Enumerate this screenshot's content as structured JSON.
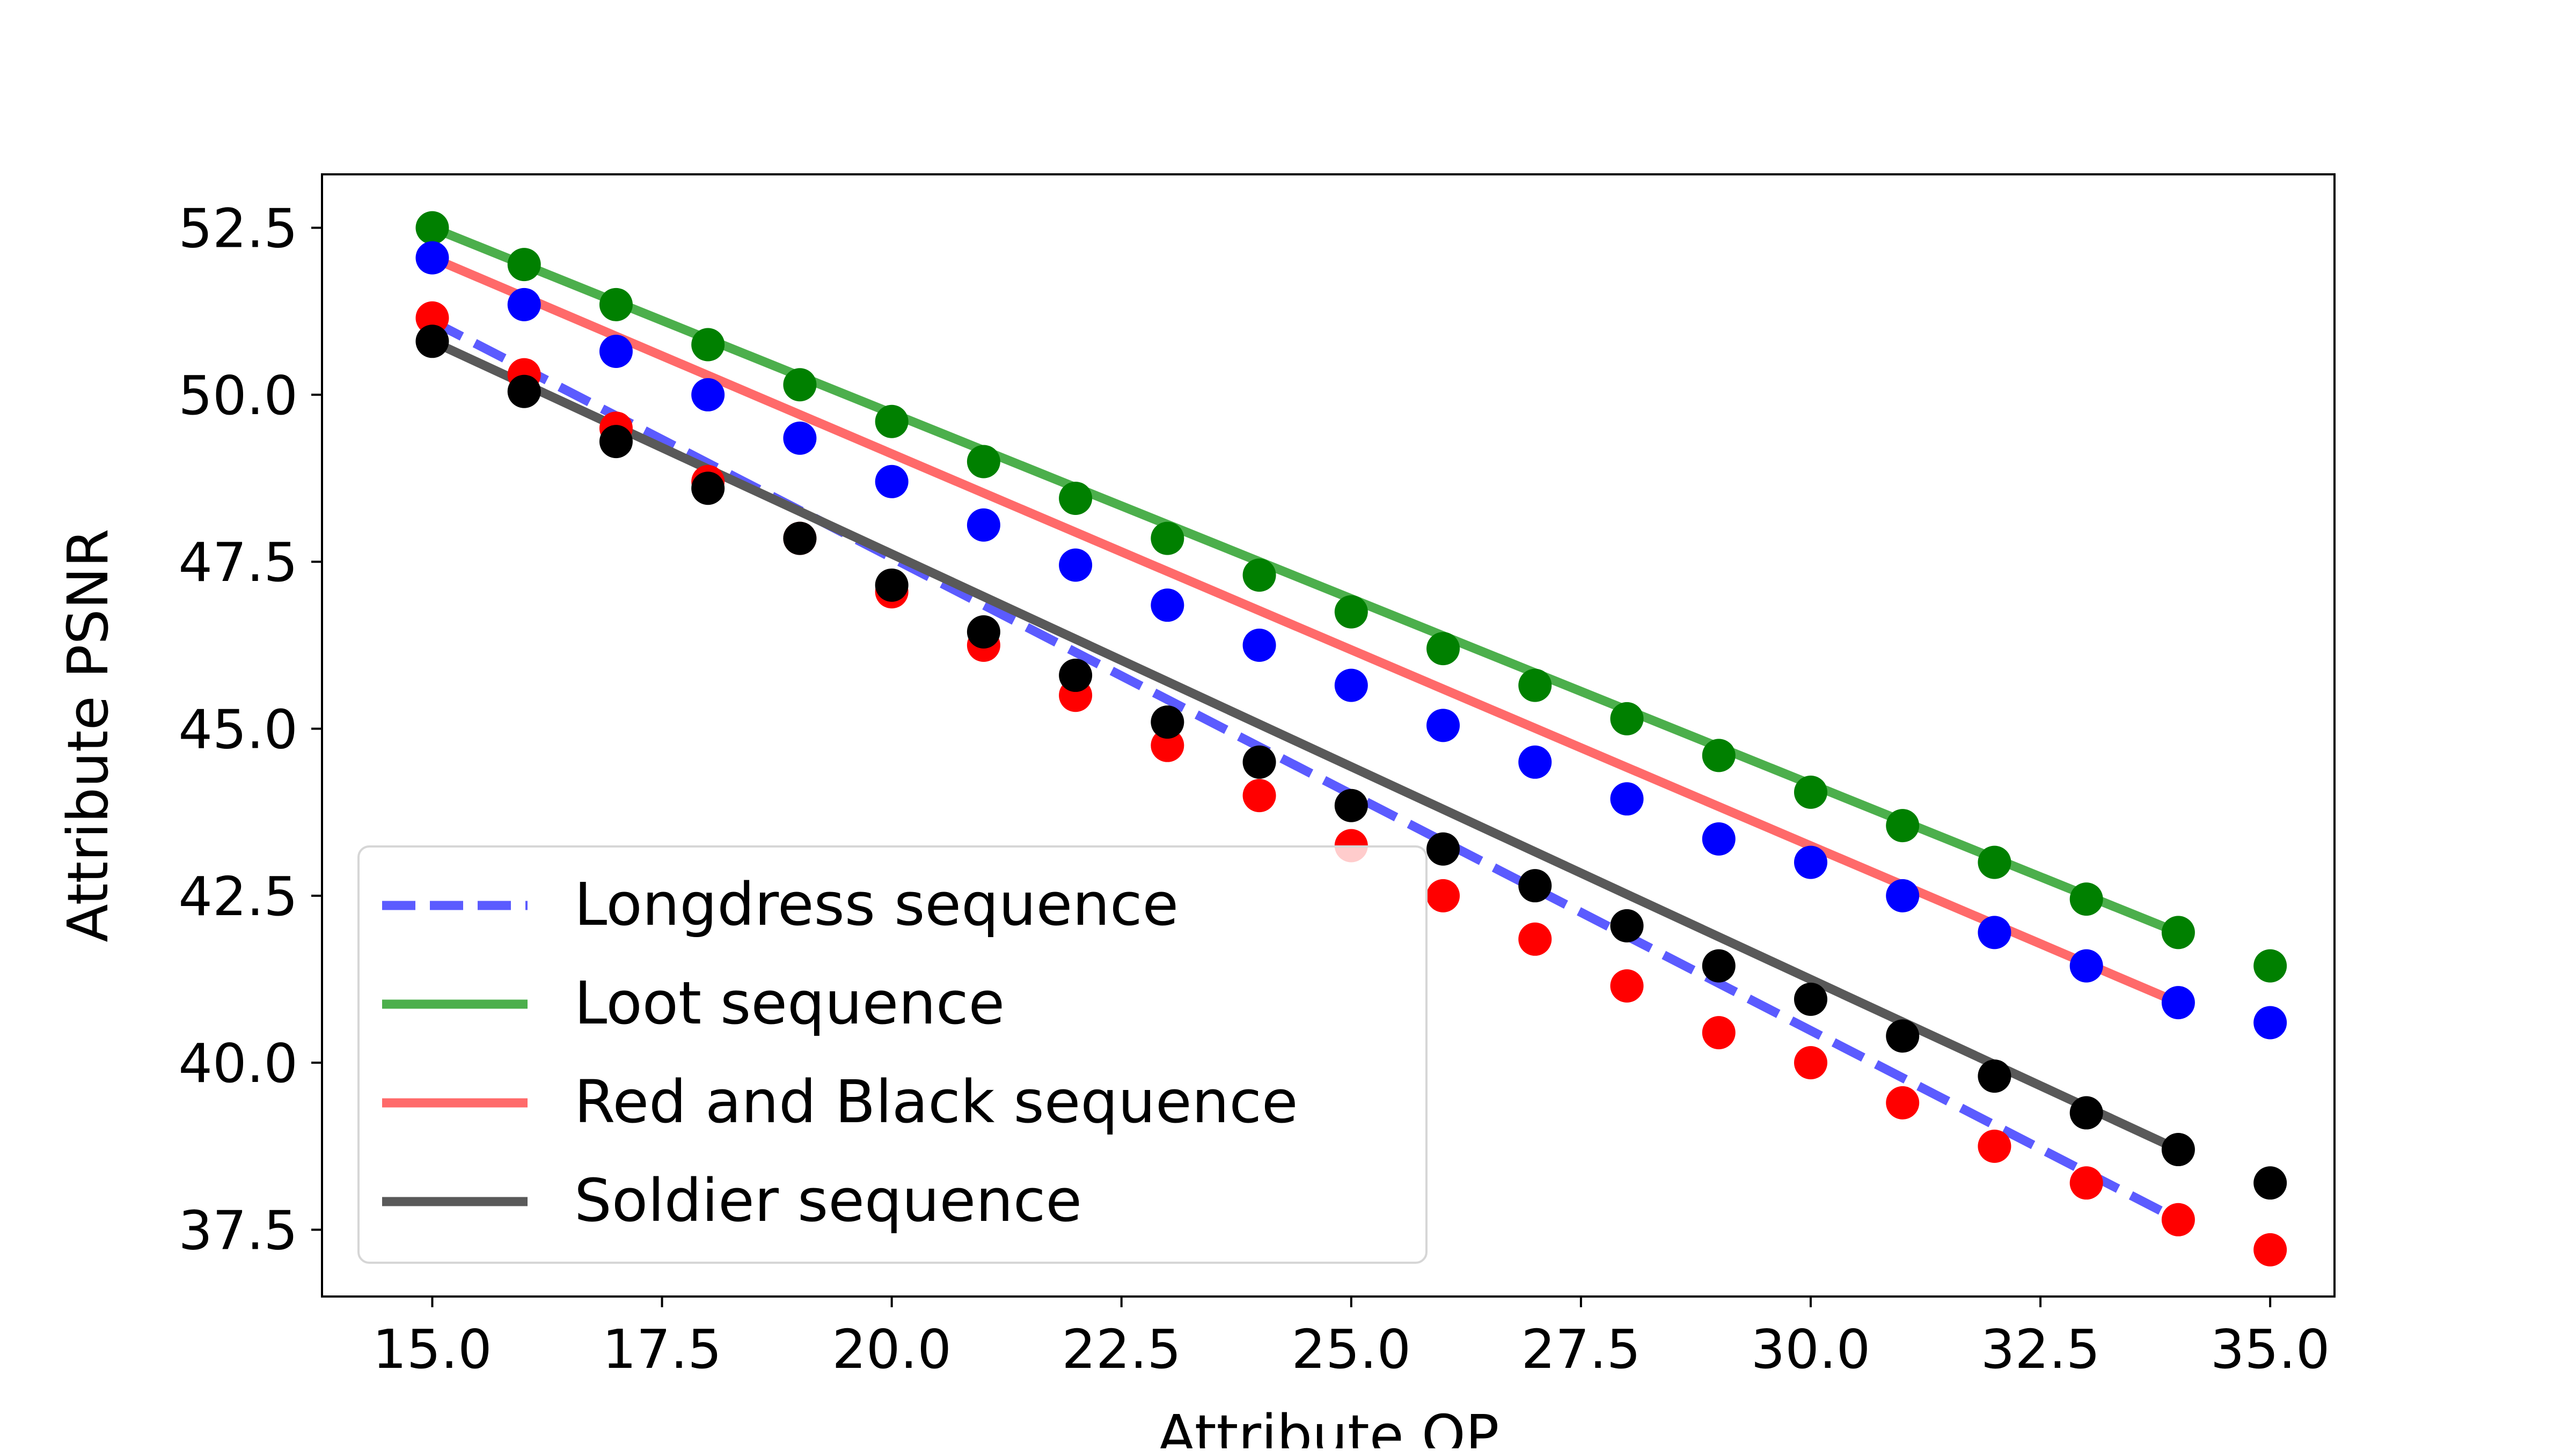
{
  "chart_data": {
    "type": "line",
    "title": "",
    "xlabel": "Attribute QP",
    "ylabel": "Attribute PSNR",
    "xlim": [
      13.8,
      35.7
    ],
    "ylim": [
      36.5,
      53.3
    ],
    "xticks": [
      15.0,
      17.5,
      20.0,
      22.5,
      25.0,
      27.5,
      30.0,
      32.5,
      35.0
    ],
    "yticks": [
      37.5,
      40.0,
      42.5,
      45.0,
      47.5,
      50.0,
      52.5
    ],
    "xtick_labels": [
      "15.0",
      "17.5",
      "20.0",
      "22.5",
      "25.0",
      "27.5",
      "30.0",
      "32.5",
      "35.0"
    ],
    "ytick_labels": [
      "37.5",
      "40.0",
      "42.5",
      "45.0",
      "47.5",
      "50.0",
      "52.5"
    ],
    "grid": false,
    "legend_position": "lower-left",
    "x": [
      15,
      16,
      17,
      18,
      19,
      20,
      21,
      22,
      23,
      24,
      25,
      26,
      27,
      28,
      29,
      30,
      31,
      32,
      33,
      34,
      35
    ],
    "series": [
      {
        "name": "Longdress sequence",
        "line_color": "#5b5bff",
        "marker_color": "#ff0000",
        "line_style": "dashed",
        "fit": [
          [
            15,
            51.1
          ],
          [
            34,
            37.65
          ]
        ],
        "values": [
          51.15,
          50.3,
          49.5,
          48.7,
          47.85,
          47.05,
          46.25,
          45.5,
          44.75,
          44.0,
          43.25,
          42.5,
          41.85,
          41.15,
          40.45,
          40.0,
          39.4,
          38.75,
          38.2,
          37.65,
          37.2
        ]
      },
      {
        "name": "Loot sequence",
        "line_color": "#4caf4c",
        "marker_color": "#008000",
        "line_style": "solid",
        "fit": [
          [
            15,
            52.5
          ],
          [
            34,
            41.95
          ]
        ],
        "values": [
          52.5,
          51.95,
          51.35,
          50.75,
          50.15,
          49.6,
          49.0,
          48.45,
          47.85,
          47.3,
          46.75,
          46.2,
          45.65,
          45.15,
          44.6,
          44.05,
          43.55,
          43.0,
          42.45,
          41.95,
          41.45
        ]
      },
      {
        "name": "Red and Black sequence",
        "line_color": "#ff6a6a",
        "marker_color": "#0000ff",
        "line_style": "solid",
        "fit": [
          [
            15,
            52.05
          ],
          [
            34,
            40.9
          ]
        ],
        "values": [
          52.05,
          51.35,
          50.65,
          50.0,
          49.35,
          48.7,
          48.05,
          47.45,
          46.85,
          46.25,
          45.65,
          45.05,
          44.5,
          43.95,
          43.35,
          43.0,
          42.5,
          41.95,
          41.45,
          40.9,
          40.6
        ]
      },
      {
        "name": "Soldier sequence",
        "line_color": "#595959",
        "marker_color": "#000000",
        "line_style": "solid",
        "fit": [
          [
            15,
            50.8
          ],
          [
            34,
            38.7
          ]
        ],
        "values": [
          50.8,
          50.05,
          49.3,
          48.6,
          47.85,
          47.15,
          46.45,
          45.8,
          45.1,
          44.5,
          43.85,
          43.2,
          42.65,
          42.05,
          41.45,
          40.95,
          40.4,
          39.8,
          39.25,
          38.7,
          38.2
        ]
      }
    ]
  }
}
